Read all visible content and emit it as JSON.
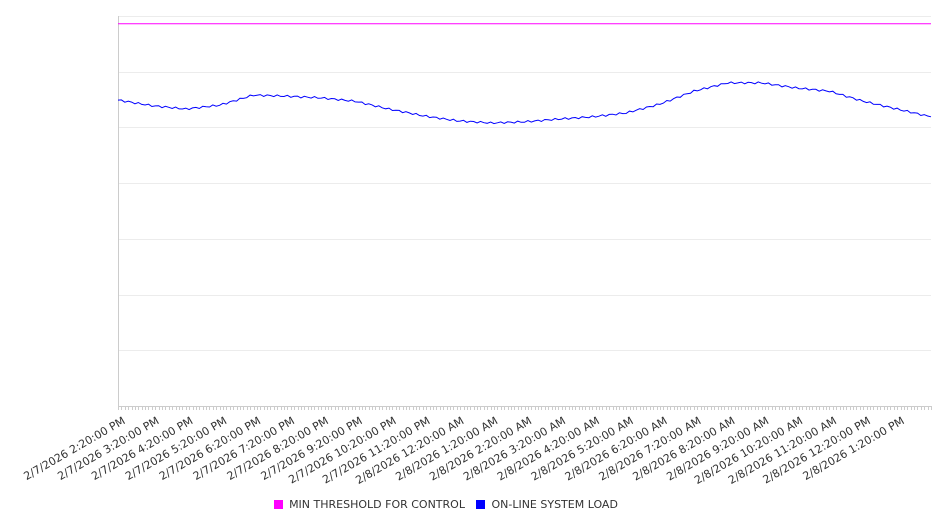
{
  "chart_data": {
    "type": "line",
    "title": "",
    "xlabel": "",
    "ylabel": "",
    "ylim": [
      0,
      70
    ],
    "grid": true,
    "y_gridlines": [
      0,
      10,
      20,
      30,
      40,
      50,
      60,
      70
    ],
    "x_tick_labels": [
      "2/7/2026 2:20:00 PM",
      "2/7/2026 3:20:00 PM",
      "2/7/2026 4:20:00 PM",
      "2/7/2026 5:20:00 PM",
      "2/7/2026 6:20:00 PM",
      "2/7/2026 7:20:00 PM",
      "2/7/2026 8:20:00 PM",
      "2/7/2026 9:20:00 PM",
      "2/7/2026 10:20:00 PM",
      "2/7/2026 11:20:00 PM",
      "2/8/2026 12:20:00 AM",
      "2/8/2026 1:20:00 AM",
      "2/8/2026 2:20:00 AM",
      "2/8/2026 3:20:00 AM",
      "2/8/2026 4:20:00 AM",
      "2/8/2026 5:20:00 AM",
      "2/8/2026 6:20:00 AM",
      "2/8/2026 7:20:00 AM",
      "2/8/2026 8:20:00 AM",
      "2/8/2026 9:20:00 AM",
      "2/8/2026 10:20:00 AM",
      "2/8/2026 11:20:00 AM",
      "2/8/2026 12:20:00 PM",
      "2/8/2026 1:20:00 PM"
    ],
    "x_hours": [
      0,
      1,
      2,
      3,
      4,
      5,
      6,
      7,
      8,
      9,
      10,
      11,
      12,
      13,
      14,
      15,
      16,
      17,
      18,
      19,
      20,
      21,
      22,
      23,
      24
    ],
    "xlim_hours": [
      0,
      24
    ],
    "legend_position": "bottom",
    "series": [
      {
        "name": "MIN THRESHOLD FOR CONTROL",
        "color": "#ff00ff",
        "values": [
          68.6,
          68.6,
          68.6,
          68.6,
          68.6,
          68.6,
          68.6,
          68.6,
          68.6,
          68.6,
          68.6,
          68.6,
          68.6,
          68.6,
          68.6,
          68.6,
          68.6,
          68.6,
          68.6,
          68.6,
          68.6,
          68.6,
          68.6,
          68.6,
          68.6
        ]
      },
      {
        "name": "ON-LINE SYSTEM LOAD",
        "color": "#0000ff",
        "values": [
          54.9,
          53.9,
          53.3,
          54.0,
          55.8,
          55.6,
          55.3,
          54.7,
          53.3,
          52.1,
          51.2,
          50.8,
          51.0,
          51.5,
          51.9,
          52.6,
          54.2,
          56.5,
          58.0,
          58.0,
          57.1,
          56.5,
          54.7,
          53.3,
          51.9
        ]
      }
    ]
  }
}
